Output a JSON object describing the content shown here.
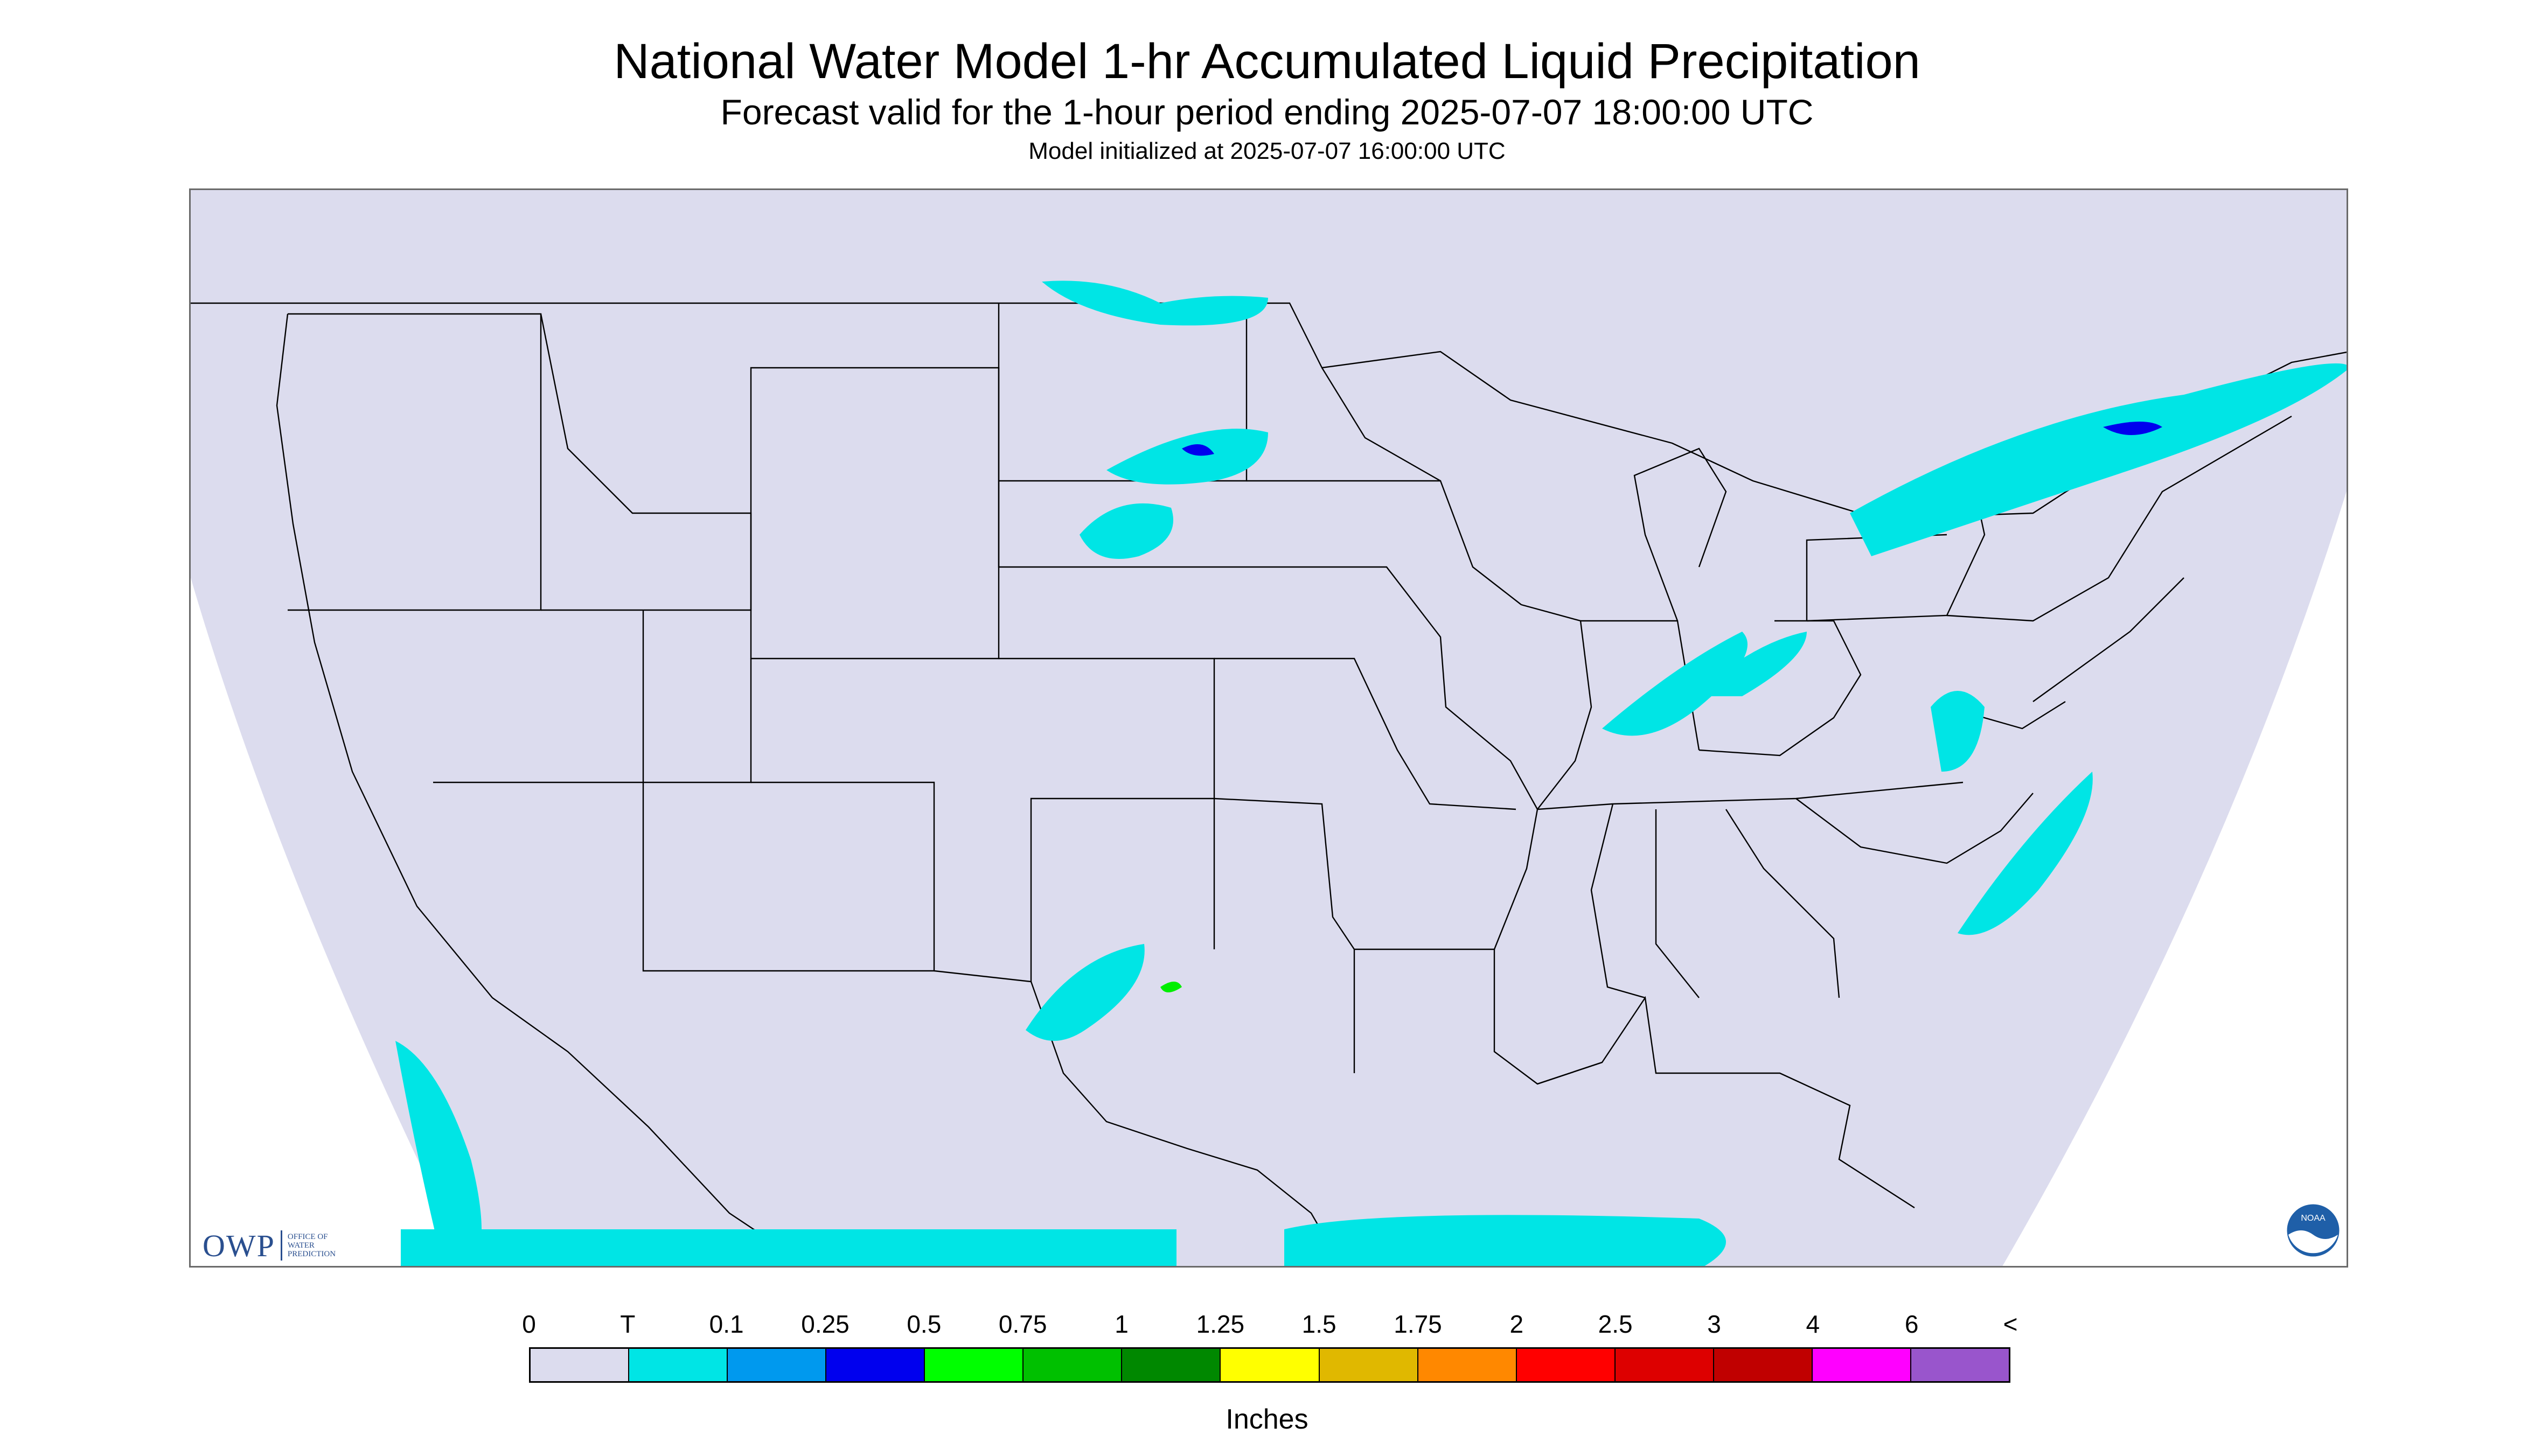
{
  "header": {
    "title": "National Water Model 1-hr Accumulated Liquid Precipitation",
    "subtitle": "Forecast valid for the 1-hour period ending 2025-07-07 18:00:00 UTC",
    "init": "Model initialized at 2025-07-07 16:00:00 UTC"
  },
  "map": {
    "background_color": "#dcdcee",
    "boundary_color": "#000000",
    "precip_colors": {
      "trace": "#00e5e5",
      "light": "#0099ee",
      "moderate": "#0000ee",
      "green": "#00ee00"
    }
  },
  "logos": {
    "owp": {
      "text": "OWP",
      "sub_lines": [
        "OFFICE OF",
        "WATER",
        "PREDICTION"
      ]
    },
    "noaa": {
      "text": "NOAA"
    }
  },
  "legend": {
    "labels": [
      "0",
      "T",
      "0.1",
      "0.25",
      "0.5",
      "0.75",
      "1",
      "1.25",
      "1.5",
      "1.75",
      "2",
      "2.5",
      "3",
      "4",
      "6",
      "<"
    ],
    "colors": [
      "#dcdcee",
      "#00e5e5",
      "#0099ee",
      "#0000ee",
      "#00ff00",
      "#00c000",
      "#008800",
      "#ffff00",
      "#e0b800",
      "#ff8800",
      "#ff0000",
      "#dd0000",
      "#c00000",
      "#ff00ff",
      "#9955cc"
    ],
    "units": "Inches"
  }
}
